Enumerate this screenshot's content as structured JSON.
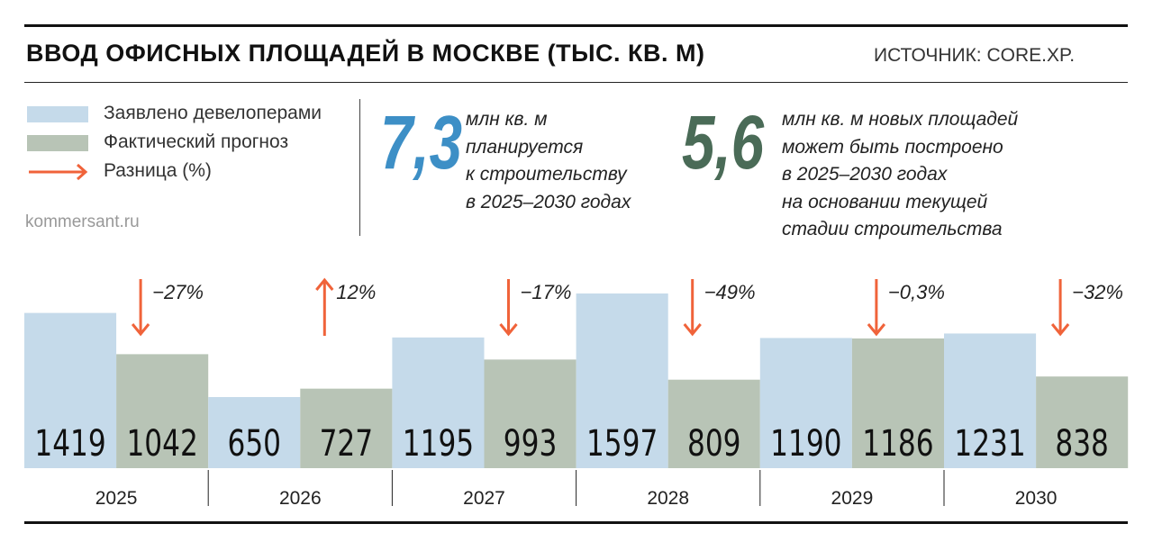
{
  "header": {
    "title": "ВВОД ОФИСНЫХ ПЛОЩАДЕЙ В МОСКВЕ (ТЫС. КВ. М)",
    "source": "ИСТОЧНИК: CORE.XP."
  },
  "legend": [
    {
      "label": "Заявлено девелоперами",
      "type": "swatch",
      "color": "#c5daea"
    },
    {
      "label": "Фактический прогноз",
      "type": "swatch",
      "color": "#b8c4b6"
    },
    {
      "label": "Разница (%)",
      "type": "arrow",
      "color": "#f0633a"
    }
  ],
  "site": "kommersant.ru",
  "facts": [
    {
      "number": "7,3",
      "color": "#3d8fc6",
      "lines": [
        "млн кв. м",
        "планируется",
        "к строительству",
        "в 2025–2030 годах"
      ]
    },
    {
      "number": "5,6",
      "color": "#4a6b57",
      "lines": [
        "млн кв. м новых площадей",
        "может быть построено",
        "в 2025–2030 годах",
        "на основании текущей",
        "стадии строительства"
      ]
    }
  ],
  "chart_data": {
    "type": "bar",
    "categories": [
      "2025",
      "2026",
      "2027",
      "2028",
      "2029",
      "2030"
    ],
    "series": [
      {
        "name": "Заявлено девелоперами",
        "values": [
          1419,
          650,
          1195,
          1597,
          1190,
          1231
        ],
        "color": "#c5daea"
      },
      {
        "name": "Фактический прогноз",
        "values": [
          1042,
          727,
          993,
          809,
          1186,
          838
        ],
        "color": "#b8c4b6"
      }
    ],
    "differences": [
      {
        "label": "−27%",
        "direction": "down"
      },
      {
        "label": "12%",
        "direction": "up"
      },
      {
        "label": "−17%",
        "direction": "down"
      },
      {
        "label": "−49%",
        "direction": "down"
      },
      {
        "label": "−0,3%",
        "direction": "down"
      },
      {
        "label": "−32%",
        "direction": "down"
      }
    ],
    "arrow_color": "#f0633a",
    "ylim": [
      0,
      1800
    ],
    "grid": false
  }
}
